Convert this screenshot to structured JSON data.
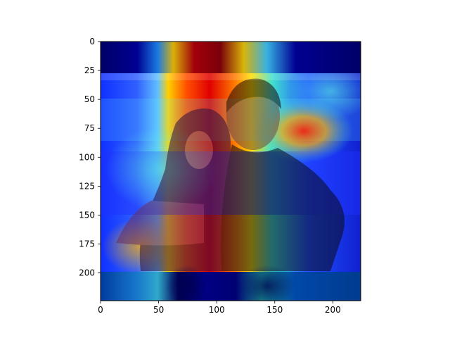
{
  "chart_data": {
    "type": "heatmap",
    "title": "",
    "xlabel": "",
    "ylabel": "",
    "xlim": [
      0,
      224
    ],
    "ylim": [
      224,
      0
    ],
    "x_ticks": [
      0,
      50,
      100,
      150,
      200
    ],
    "y_ticks": [
      0,
      25,
      50,
      75,
      100,
      125,
      150,
      175,
      200
    ],
    "grid": false,
    "colormap": "jet",
    "overlay": "attention heatmap over photo of a woman and a bearded man standing back to back",
    "colors": {
      "hot": "#d40000",
      "warm": "#ffd400",
      "mid": "#40e0d0",
      "cool": "#2040ff",
      "cold": "#00006e"
    }
  }
}
